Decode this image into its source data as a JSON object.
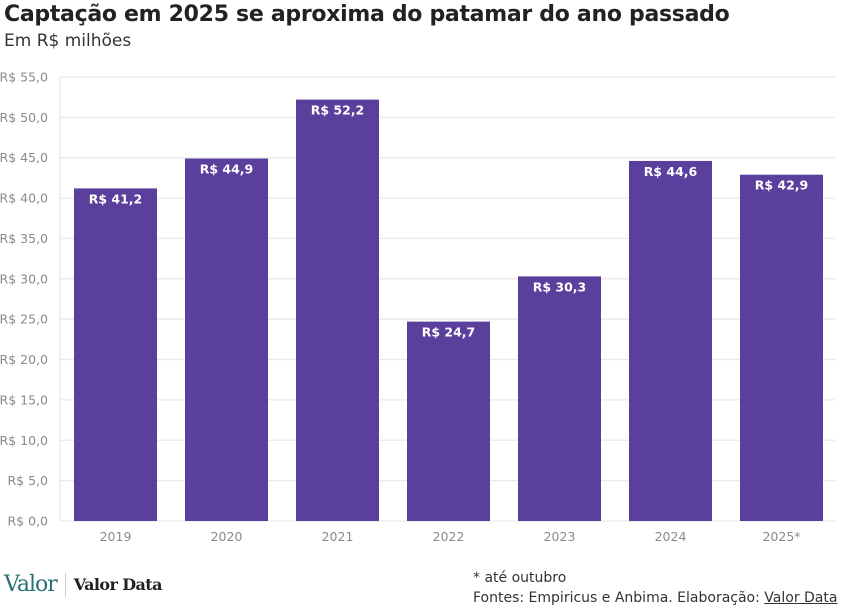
{
  "chart_data": {
    "type": "bar",
    "title": "Captação em 2025 se aproxima do patamar do ano passado",
    "subtitle": "Em R$ milhões",
    "categories": [
      "2019",
      "2020",
      "2021",
      "2022",
      "2023",
      "2024",
      "2025*"
    ],
    "values": [
      41.2,
      44.9,
      52.2,
      24.7,
      30.3,
      44.6,
      42.9
    ],
    "data_labels": [
      "R$ 41,2",
      "R$ 44,9",
      "R$ 52,2",
      "R$ 24,7",
      "R$ 30,3",
      "R$ 44,6",
      "R$ 42,9"
    ],
    "yticks": [
      "R$ 0,0",
      "R$ 5,0",
      "R$ 10,0",
      "R$ 15,0",
      "R$ 20,0",
      "R$ 25,0",
      "R$ 30,0",
      "R$ 35,0",
      "R$ 40,0",
      "R$ 45,0",
      "R$ 50,0",
      "R$ 55,0"
    ],
    "ylim": [
      0,
      55
    ],
    "grid": true,
    "bar_color": "#5a3f9c"
  },
  "footer": {
    "note": "* até outubro",
    "sources": "Fontes: Empiricus e Anbima. Elaboração: ",
    "sources_link": "Valor Data",
    "logo_valor": "Valor",
    "logo_valor_data": "Valor Data"
  }
}
